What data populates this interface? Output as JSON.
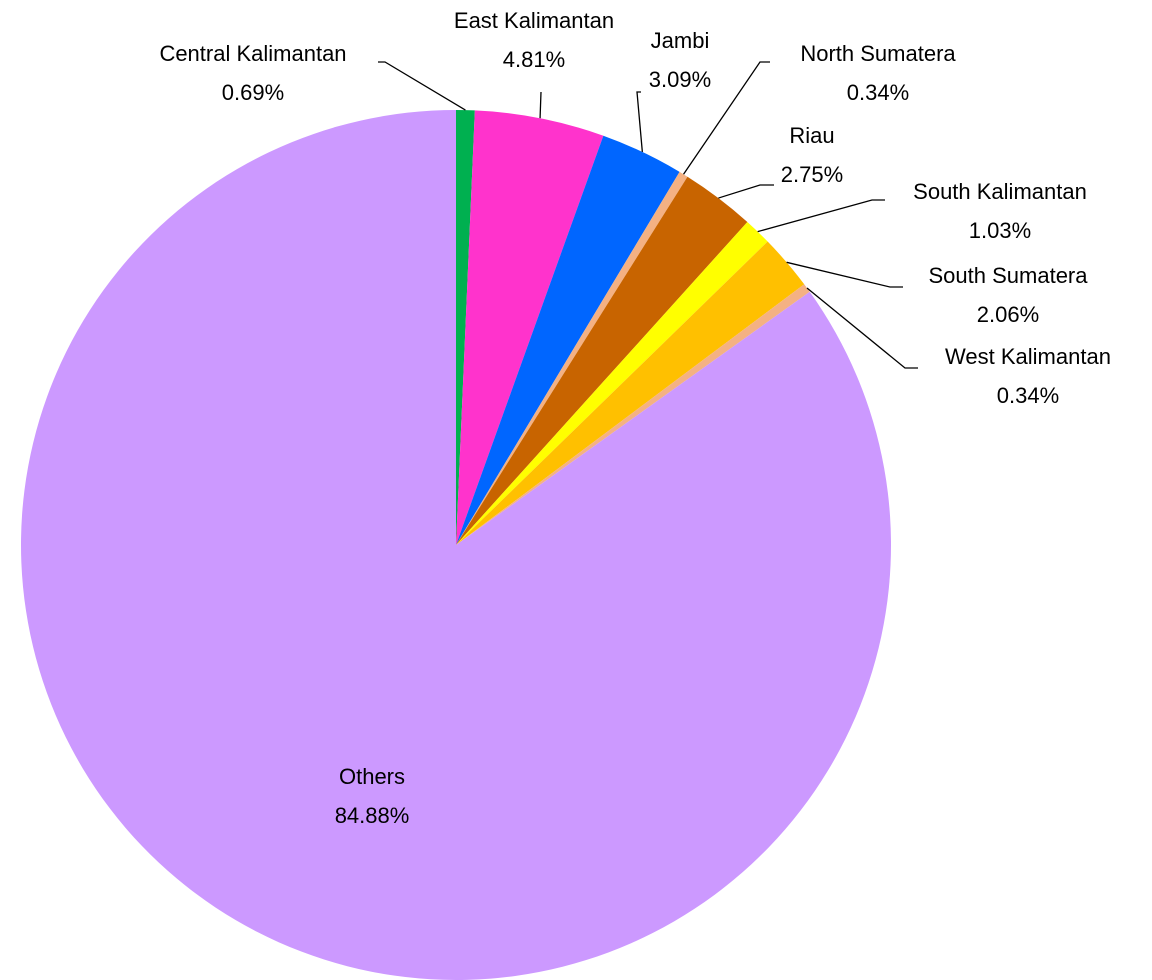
{
  "chart_data": {
    "type": "pie",
    "categories": [
      "Central Kalimantan",
      "East Kalimantan",
      "Jambi",
      "North Sumatera",
      "Riau",
      "South Kalimantan",
      "South Sumatera",
      "West Kalimantan",
      "Others"
    ],
    "values": [
      0.69,
      4.81,
      3.09,
      0.34,
      2.75,
      1.03,
      2.06,
      0.34,
      84.88
    ],
    "value_labels": [
      "0.69%",
      "4.81%",
      "3.09%",
      "0.34%",
      "2.75%",
      "1.03%",
      "2.06%",
      "0.34%",
      "84.88%"
    ],
    "colors": [
      "#00b050",
      "#ff33cc",
      "#0066ff",
      "#f4b183",
      "#c86400",
      "#ffff00",
      "#ffc000",
      "#f4b183",
      "#cc99ff"
    ]
  }
}
